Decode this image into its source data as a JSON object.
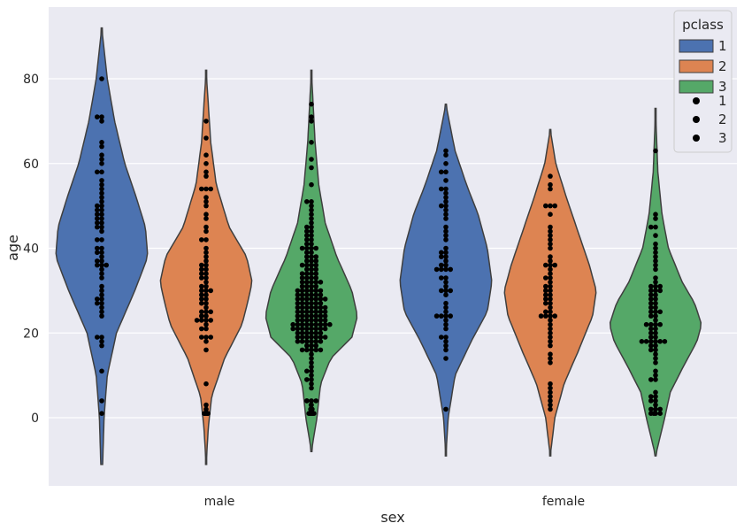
{
  "chart_data": {
    "type": "violin",
    "xlabel": "sex",
    "ylabel": "age",
    "categories": [
      "male",
      "female"
    ],
    "ylim": [
      -16,
      96
    ],
    "yticks": [
      0,
      20,
      40,
      60,
      80
    ],
    "grid": true,
    "legend": {
      "title": "pclass",
      "placement": "top-right",
      "violin_entries": [
        "1",
        "2",
        "3"
      ],
      "point_entries": [
        "1",
        "2",
        "3"
      ]
    },
    "colors": {
      "1": "#4c72b0",
      "2": "#dd8452",
      "3": "#55a868",
      "points": "#000000",
      "background": "#eaeaf2"
    },
    "series": [
      {
        "name": "1",
        "violins": [
          {
            "category": "male",
            "min": -11,
            "max": 92,
            "density": [
              [
                -11,
                0.02
              ],
              [
                0,
                0.05
              ],
              [
                10,
                0.12
              ],
              [
                20,
                0.32
              ],
              [
                30,
                0.72
              ],
              [
                38,
                1.0
              ],
              [
                45,
                0.95
              ],
              [
                52,
                0.75
              ],
              [
                60,
                0.5
              ],
              [
                70,
                0.28
              ],
              [
                80,
                0.12
              ],
              [
                92,
                0.0
              ]
            ],
            "points": [
              1,
              4,
              11,
              17,
              18,
              19,
              19,
              24,
              25,
              26,
              27,
              27,
              28,
              28,
              29,
              30,
              31,
              33,
              34,
              35,
              36,
              36,
              36,
              37,
              37,
              38,
              39,
              39,
              40,
              40,
              42,
              42,
              44,
              45,
              45,
              46,
              46,
              47,
              47,
              48,
              48,
              49,
              49,
              50,
              50,
              51,
              52,
              53,
              54,
              55,
              56,
              58,
              58,
              60,
              61,
              62,
              64,
              65,
              70,
              71,
              71,
              80
            ]
          },
          {
            "category": "female",
            "min": -9,
            "max": 74,
            "density": [
              [
                -9,
                0.0
              ],
              [
                0,
                0.05
              ],
              [
                10,
                0.2
              ],
              [
                18,
                0.55
              ],
              [
                25,
                0.9
              ],
              [
                32,
                1.0
              ],
              [
                40,
                0.9
              ],
              [
                48,
                0.7
              ],
              [
                55,
                0.45
              ],
              [
                63,
                0.2
              ],
              [
                74,
                0.0
              ]
            ],
            "points": [
              2,
              14,
              16,
              17,
              18,
              19,
              19,
              21,
              22,
              23,
              24,
              24,
              24,
              24,
              25,
              26,
              27,
              29,
              30,
              30,
              30,
              31,
              32,
              33,
              33,
              35,
              35,
              35,
              35,
              36,
              36,
              37,
              38,
              38,
              39,
              39,
              40,
              42,
              43,
              44,
              45,
              47,
              48,
              49,
              50,
              50,
              51,
              52,
              53,
              54,
              54,
              56,
              58,
              58,
              60,
              62,
              63
            ]
          }
        ]
      },
      {
        "name": "2",
        "violins": [
          {
            "category": "male",
            "min": -11,
            "max": 82,
            "density": [
              [
                -11,
                0.0
              ],
              [
                -2,
                0.05
              ],
              [
                5,
                0.12
              ],
              [
                14,
                0.4
              ],
              [
                22,
                0.78
              ],
              [
                28,
                0.92
              ],
              [
                32,
                1.0
              ],
              [
                38,
                0.88
              ],
              [
                45,
                0.5
              ],
              [
                55,
                0.22
              ],
              [
                65,
                0.1
              ],
              [
                82,
                0.0
              ]
            ],
            "points": [
              1,
              1,
              1,
              1,
              1,
              2,
              3,
              8,
              16,
              18,
              19,
              19,
              19,
              21,
              21,
              22,
              23,
              23,
              23,
              23,
              24,
              24,
              25,
              25,
              25,
              26,
              27,
              27,
              28,
              28,
              29,
              29,
              30,
              30,
              30,
              31,
              31,
              32,
              33,
              33,
              34,
              34,
              35,
              35,
              36,
              36,
              37,
              38,
              39,
              40,
              42,
              42,
              44,
              45,
              47,
              48,
              50,
              51,
              52,
              54,
              54,
              54,
              57,
              58,
              60,
              62,
              66,
              70
            ]
          },
          {
            "category": "female",
            "min": -9,
            "max": 68,
            "density": [
              [
                -9,
                0.0
              ],
              [
                0,
                0.1
              ],
              [
                8,
                0.3
              ],
              [
                16,
                0.62
              ],
              [
                24,
                0.92
              ],
              [
                30,
                1.0
              ],
              [
                36,
                0.85
              ],
              [
                44,
                0.6
              ],
              [
                52,
                0.35
              ],
              [
                60,
                0.12
              ],
              [
                68,
                0.0
              ]
            ],
            "points": [
              2,
              3,
              4,
              5,
              6,
              7,
              8,
              13,
              14,
              15,
              17,
              18,
              19,
              20,
              21,
              22,
              23,
              24,
              24,
              24,
              24,
              25,
              25,
              26,
              27,
              27,
              28,
              28,
              29,
              29,
              30,
              30,
              31,
              31,
              32,
              33,
              33,
              34,
              35,
              36,
              36,
              36,
              37,
              38,
              40,
              41,
              42,
              43,
              44,
              45,
              48,
              50,
              50,
              50,
              54,
              55,
              57
            ]
          }
        ]
      },
      {
        "name": "3",
        "violins": [
          {
            "category": "male",
            "min": -8,
            "max": 82,
            "density": [
              [
                -8,
                0.0
              ],
              [
                0,
                0.12
              ],
              [
                8,
                0.2
              ],
              [
                14,
                0.42
              ],
              [
                19,
                0.88
              ],
              [
                24,
                1.0
              ],
              [
                30,
                0.88
              ],
              [
                38,
                0.55
              ],
              [
                46,
                0.3
              ],
              [
                55,
                0.16
              ],
              [
                65,
                0.08
              ],
              [
                82,
                0.0
              ]
            ],
            "points": [
              1,
              1,
              1,
              1,
              1,
              2,
              2,
              2,
              3,
              3,
              4,
              4,
              4,
              4,
              7,
              8,
              9,
              9,
              10,
              11,
              11,
              12,
              13,
              14,
              15,
              16,
              16,
              16,
              16,
              16,
              17,
              17,
              17,
              18,
              18,
              18,
              18,
              18,
              18,
              19,
              19,
              19,
              19,
              19,
              19,
              19,
              20,
              20,
              20,
              20,
              20,
              20,
              21,
              21,
              21,
              21,
              21,
              21,
              21,
              21,
              22,
              22,
              22,
              22,
              22,
              22,
              22,
              22,
              22,
              23,
              23,
              23,
              23,
              23,
              23,
              23,
              24,
              24,
              24,
              24,
              24,
              24,
              24,
              25,
              25,
              25,
              25,
              25,
              25,
              25,
              26,
              26,
              26,
              26,
              26,
              26,
              26,
              27,
              27,
              27,
              27,
              27,
              27,
              28,
              28,
              28,
              28,
              28,
              28,
              28,
              29,
              29,
              29,
              29,
              29,
              29,
              30,
              30,
              30,
              30,
              30,
              30,
              31,
              31,
              31,
              31,
              32,
              32,
              32,
              32,
              32,
              33,
              33,
              33,
              33,
              34,
              34,
              34,
              34,
              35,
              35,
              35,
              36,
              36,
              36,
              36,
              37,
              37,
              37,
              38,
              38,
              38,
              39,
              39,
              40,
              40,
              40,
              40,
              41,
              41,
              42,
              42,
              43,
              43,
              44,
              44,
              45,
              45,
              46,
              47,
              48,
              49,
              50,
              51,
              51,
              55,
              59,
              61,
              65,
              70,
              71,
              74
            ]
          },
          {
            "category": "female",
            "min": -9,
            "max": 73,
            "density": [
              [
                -9,
                0.0
              ],
              [
                0,
                0.2
              ],
              [
                6,
                0.32
              ],
              [
                12,
                0.6
              ],
              [
                18,
                0.9
              ],
              [
                22,
                1.0
              ],
              [
                27,
                0.85
              ],
              [
                32,
                0.58
              ],
              [
                40,
                0.28
              ],
              [
                48,
                0.14
              ],
              [
                58,
                0.05
              ],
              [
                73,
                0.0
              ]
            ],
            "points": [
              1,
              1,
              1,
              1,
              2,
              2,
              2,
              3,
              4,
              4,
              5,
              5,
              6,
              9,
              9,
              10,
              11,
              13,
              14,
              15,
              16,
              16,
              17,
              17,
              18,
              18,
              18,
              18,
              18,
              18,
              19,
              19,
              20,
              20,
              21,
              21,
              22,
              22,
              22,
              22,
              23,
              24,
              24,
              25,
              25,
              25,
              26,
              26,
              27,
              27,
              28,
              28,
              29,
              29,
              30,
              30,
              30,
              31,
              31,
              31,
              32,
              33,
              35,
              36,
              37,
              38,
              39,
              40,
              41,
              43,
              45,
              45,
              47,
              48,
              63
            ]
          }
        ]
      }
    ]
  }
}
